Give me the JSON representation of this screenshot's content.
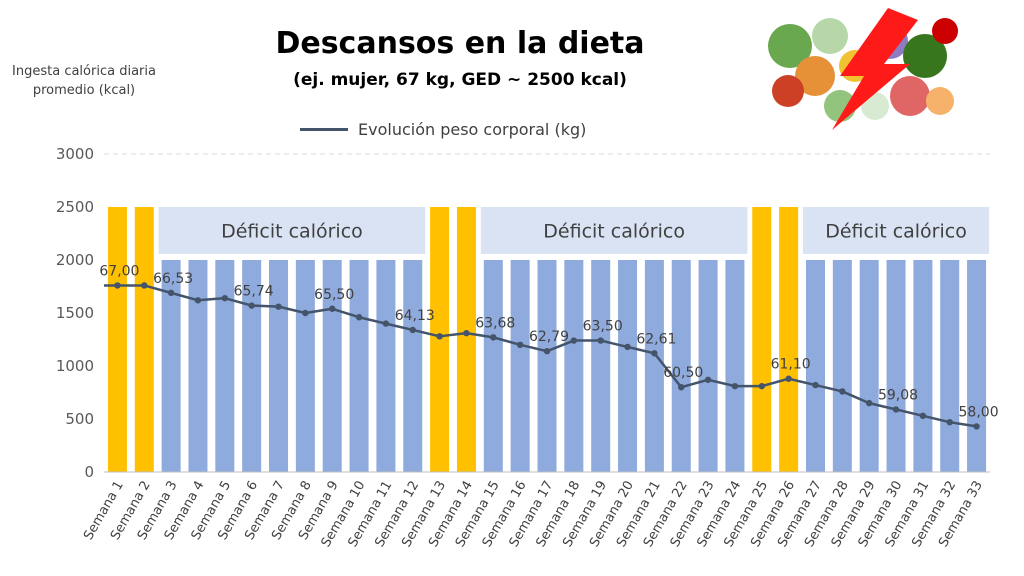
{
  "title": "Descansos en la dieta",
  "subtitle": "(ej. mujer, 67 kg, GED ~ 2500 kcal)",
  "colors": {
    "rest": "#ffc000",
    "deficit": "#8faadc",
    "band": "#dae3f3",
    "line": "#44546a",
    "grid": "#d9d9d9"
  },
  "chart_data": {
    "type": "bar",
    "ylabel": "Ingesta calórica diaria promedio (kcal)",
    "ylim": [
      0,
      3000
    ],
    "yticks": [
      0,
      500,
      1000,
      1500,
      2000,
      2500,
      3000
    ],
    "grid": true,
    "legend_position": "top",
    "categories": [
      "Semana 1",
      "Semana 2",
      "Semana 3",
      "Semana 4",
      "Semana 5",
      "Semana 6",
      "Semana 7",
      "Semana 8",
      "Semana 9",
      "Semana 10",
      "Semana 11",
      "Semana 12",
      "Semana 13",
      "Semana 14",
      "Semana 15",
      "Semana 16",
      "Semana 17",
      "Semana 18",
      "Semana 19",
      "Semana 20",
      "Semana 21",
      "Semana 22",
      "Semana 23",
      "Semana 24",
      "Semana 25",
      "Semana 26",
      "Semana 27",
      "Semana 28",
      "Semana 29",
      "Semana 30",
      "Semana 31",
      "Semana 32",
      "Semana 33"
    ],
    "series": [
      {
        "kind": "bar",
        "values": [
          2500,
          2500,
          2000,
          2000,
          2000,
          2000,
          2000,
          2000,
          2000,
          2000,
          2000,
          2000,
          2500,
          2500,
          2000,
          2000,
          2000,
          2000,
          2000,
          2000,
          2000,
          2000,
          2000,
          2000,
          2500,
          2500,
          2000,
          2000,
          2000,
          2000,
          2000,
          2000,
          2000
        ],
        "bar_type": [
          "rest",
          "rest",
          "deficit",
          "deficit",
          "deficit",
          "deficit",
          "deficit",
          "deficit",
          "deficit",
          "deficit",
          "deficit",
          "deficit",
          "rest",
          "rest",
          "deficit",
          "deficit",
          "deficit",
          "deficit",
          "deficit",
          "deficit",
          "deficit",
          "deficit",
          "deficit",
          "deficit",
          "rest",
          "rest",
          "deficit",
          "deficit",
          "deficit",
          "deficit",
          "deficit",
          "deficit",
          "deficit"
        ]
      },
      {
        "kind": "line",
        "name": "Evolución peso corporal (kg)",
        "values": [
          67.0,
          67.0,
          66.53,
          66.2,
          66.3,
          65.74,
          65.7,
          65.35,
          65.5,
          65.2,
          64.9,
          64.13,
          64.0,
          64.1,
          63.68,
          63.3,
          62.79,
          63.45,
          63.5,
          63.1,
          62.61,
          60.5,
          60.8,
          60.5,
          60.5,
          61.1,
          60.7,
          60.3,
          59.3,
          59.08,
          58.6,
          58.2,
          58.0
        ],
        "plotted_kcal": [
          1760,
          1760,
          1690,
          1620,
          1640,
          1570,
          1560,
          1500,
          1540,
          1460,
          1400,
          1340,
          1280,
          1310,
          1270,
          1200,
          1140,
          1240,
          1240,
          1180,
          1120,
          800,
          870,
          810,
          810,
          880,
          820,
          760,
          650,
          590,
          530,
          470,
          430
        ],
        "data_labels": {
          "1": "67,00",
          "3": "66,53",
          "6": "65,74",
          "9": "65,50",
          "12": "64,13",
          "15": "63,68",
          "17": "62,79",
          "19": "63,50",
          "21": "62,61",
          "22": "60,50",
          "26": "61,10",
          "30": "59,08",
          "33": "58,00"
        }
      }
    ],
    "annotations": [
      {
        "text": "Déficit calórico",
        "from": 3,
        "to": 12
      },
      {
        "text": "Déficit calórico",
        "from": 15,
        "to": 24
      },
      {
        "text": "Déficit calórico",
        "from": 27,
        "to": 33
      }
    ]
  }
}
